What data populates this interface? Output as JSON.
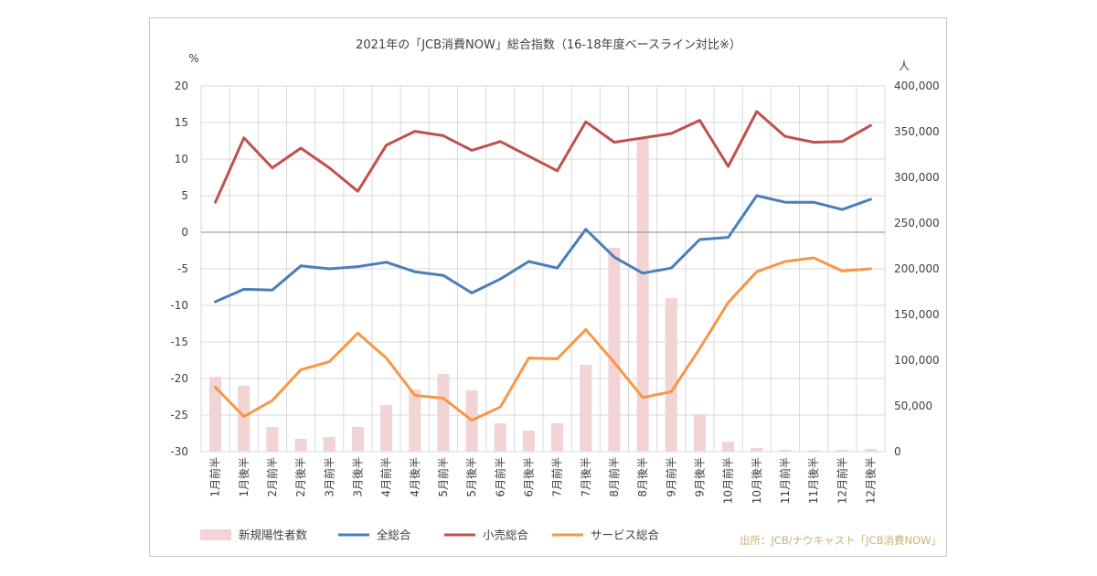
{
  "chart_data": {
    "type": "bar+line",
    "title": "2021年の「JCB消費NOW」総合指数（16-18年度ベースライン対比※）",
    "ylabel_left": "%",
    "ylabel_right": "人",
    "ylim_left": [
      -30,
      20
    ],
    "ylim_right": [
      0,
      400000
    ],
    "left_ticks": [
      "20",
      "15",
      "10",
      "5",
      "0",
      "-5",
      "-10",
      "-15",
      "-20",
      "-25",
      "-30"
    ],
    "right_ticks": [
      "400,000",
      "350,000",
      "300,000",
      "250,000",
      "200,000",
      "150,000",
      "100,000",
      "50,000",
      "0"
    ],
    "categories": [
      "1月前半",
      "1月後半",
      "2月前半",
      "2月後半",
      "3月前半",
      "3月後半",
      "4月前半",
      "4月後半",
      "5月前半",
      "5月後半",
      "6月前半",
      "6月後半",
      "7月前半",
      "7月後半",
      "8月前半",
      "8月後半",
      "9月前半",
      "9月後半",
      "10月前半",
      "10月後半",
      "11月前半",
      "11月後半",
      "12月前半",
      "12月後半"
    ],
    "bars": {
      "name": "新規陽性者数",
      "axis": "right",
      "color": "#f2d4d4",
      "values": [
        82000,
        72000,
        27000,
        14000,
        16000,
        27000,
        51000,
        68000,
        85000,
        67000,
        31000,
        23000,
        31000,
        95000,
        223000,
        343000,
        168000,
        41000,
        11000,
        4000,
        2000,
        1500,
        1800,
        3000
      ]
    },
    "series": [
      {
        "name": "全総合",
        "axis": "left",
        "color": "#4a7ebb",
        "values": [
          -9.5,
          -7.8,
          -7.9,
          -4.6,
          -5.0,
          -4.7,
          -4.1,
          -5.4,
          -5.9,
          -8.3,
          -6.4,
          -4.0,
          -4.9,
          0.4,
          -3.4,
          -5.6,
          -4.9,
          -1.0,
          -0.7,
          5.0,
          4.1,
          4.1,
          3.1,
          4.5
        ]
      },
      {
        "name": "小売総合",
        "axis": "left",
        "color": "#c0504d",
        "values": [
          4.1,
          12.9,
          8.8,
          11.5,
          8.8,
          5.6,
          11.9,
          13.8,
          13.2,
          11.2,
          12.4,
          10.4,
          8.4,
          15.1,
          12.3,
          12.9,
          13.5,
          15.3,
          9.0,
          16.5,
          13.1,
          12.3,
          12.4,
          14.6
        ]
      },
      {
        "name": "サービス総合",
        "axis": "left",
        "color": "#f79646",
        "values": [
          -21.2,
          -25.2,
          -23.0,
          -18.8,
          -17.7,
          -13.8,
          -17.2,
          -22.3,
          -22.7,
          -25.7,
          -23.9,
          -17.2,
          -17.3,
          -13.3,
          -17.8,
          -22.6,
          -21.8,
          -15.9,
          -9.6,
          -5.4,
          -4.0,
          -3.5,
          -5.3,
          -5.0
        ]
      }
    ],
    "legend": [
      "新規陽性者数",
      "全総合",
      "小売総合",
      "サービス総合"
    ],
    "source": "出所：JCB/ナウキャスト「JCB消費NOW」",
    "grid": "vertical and horizontal"
  }
}
